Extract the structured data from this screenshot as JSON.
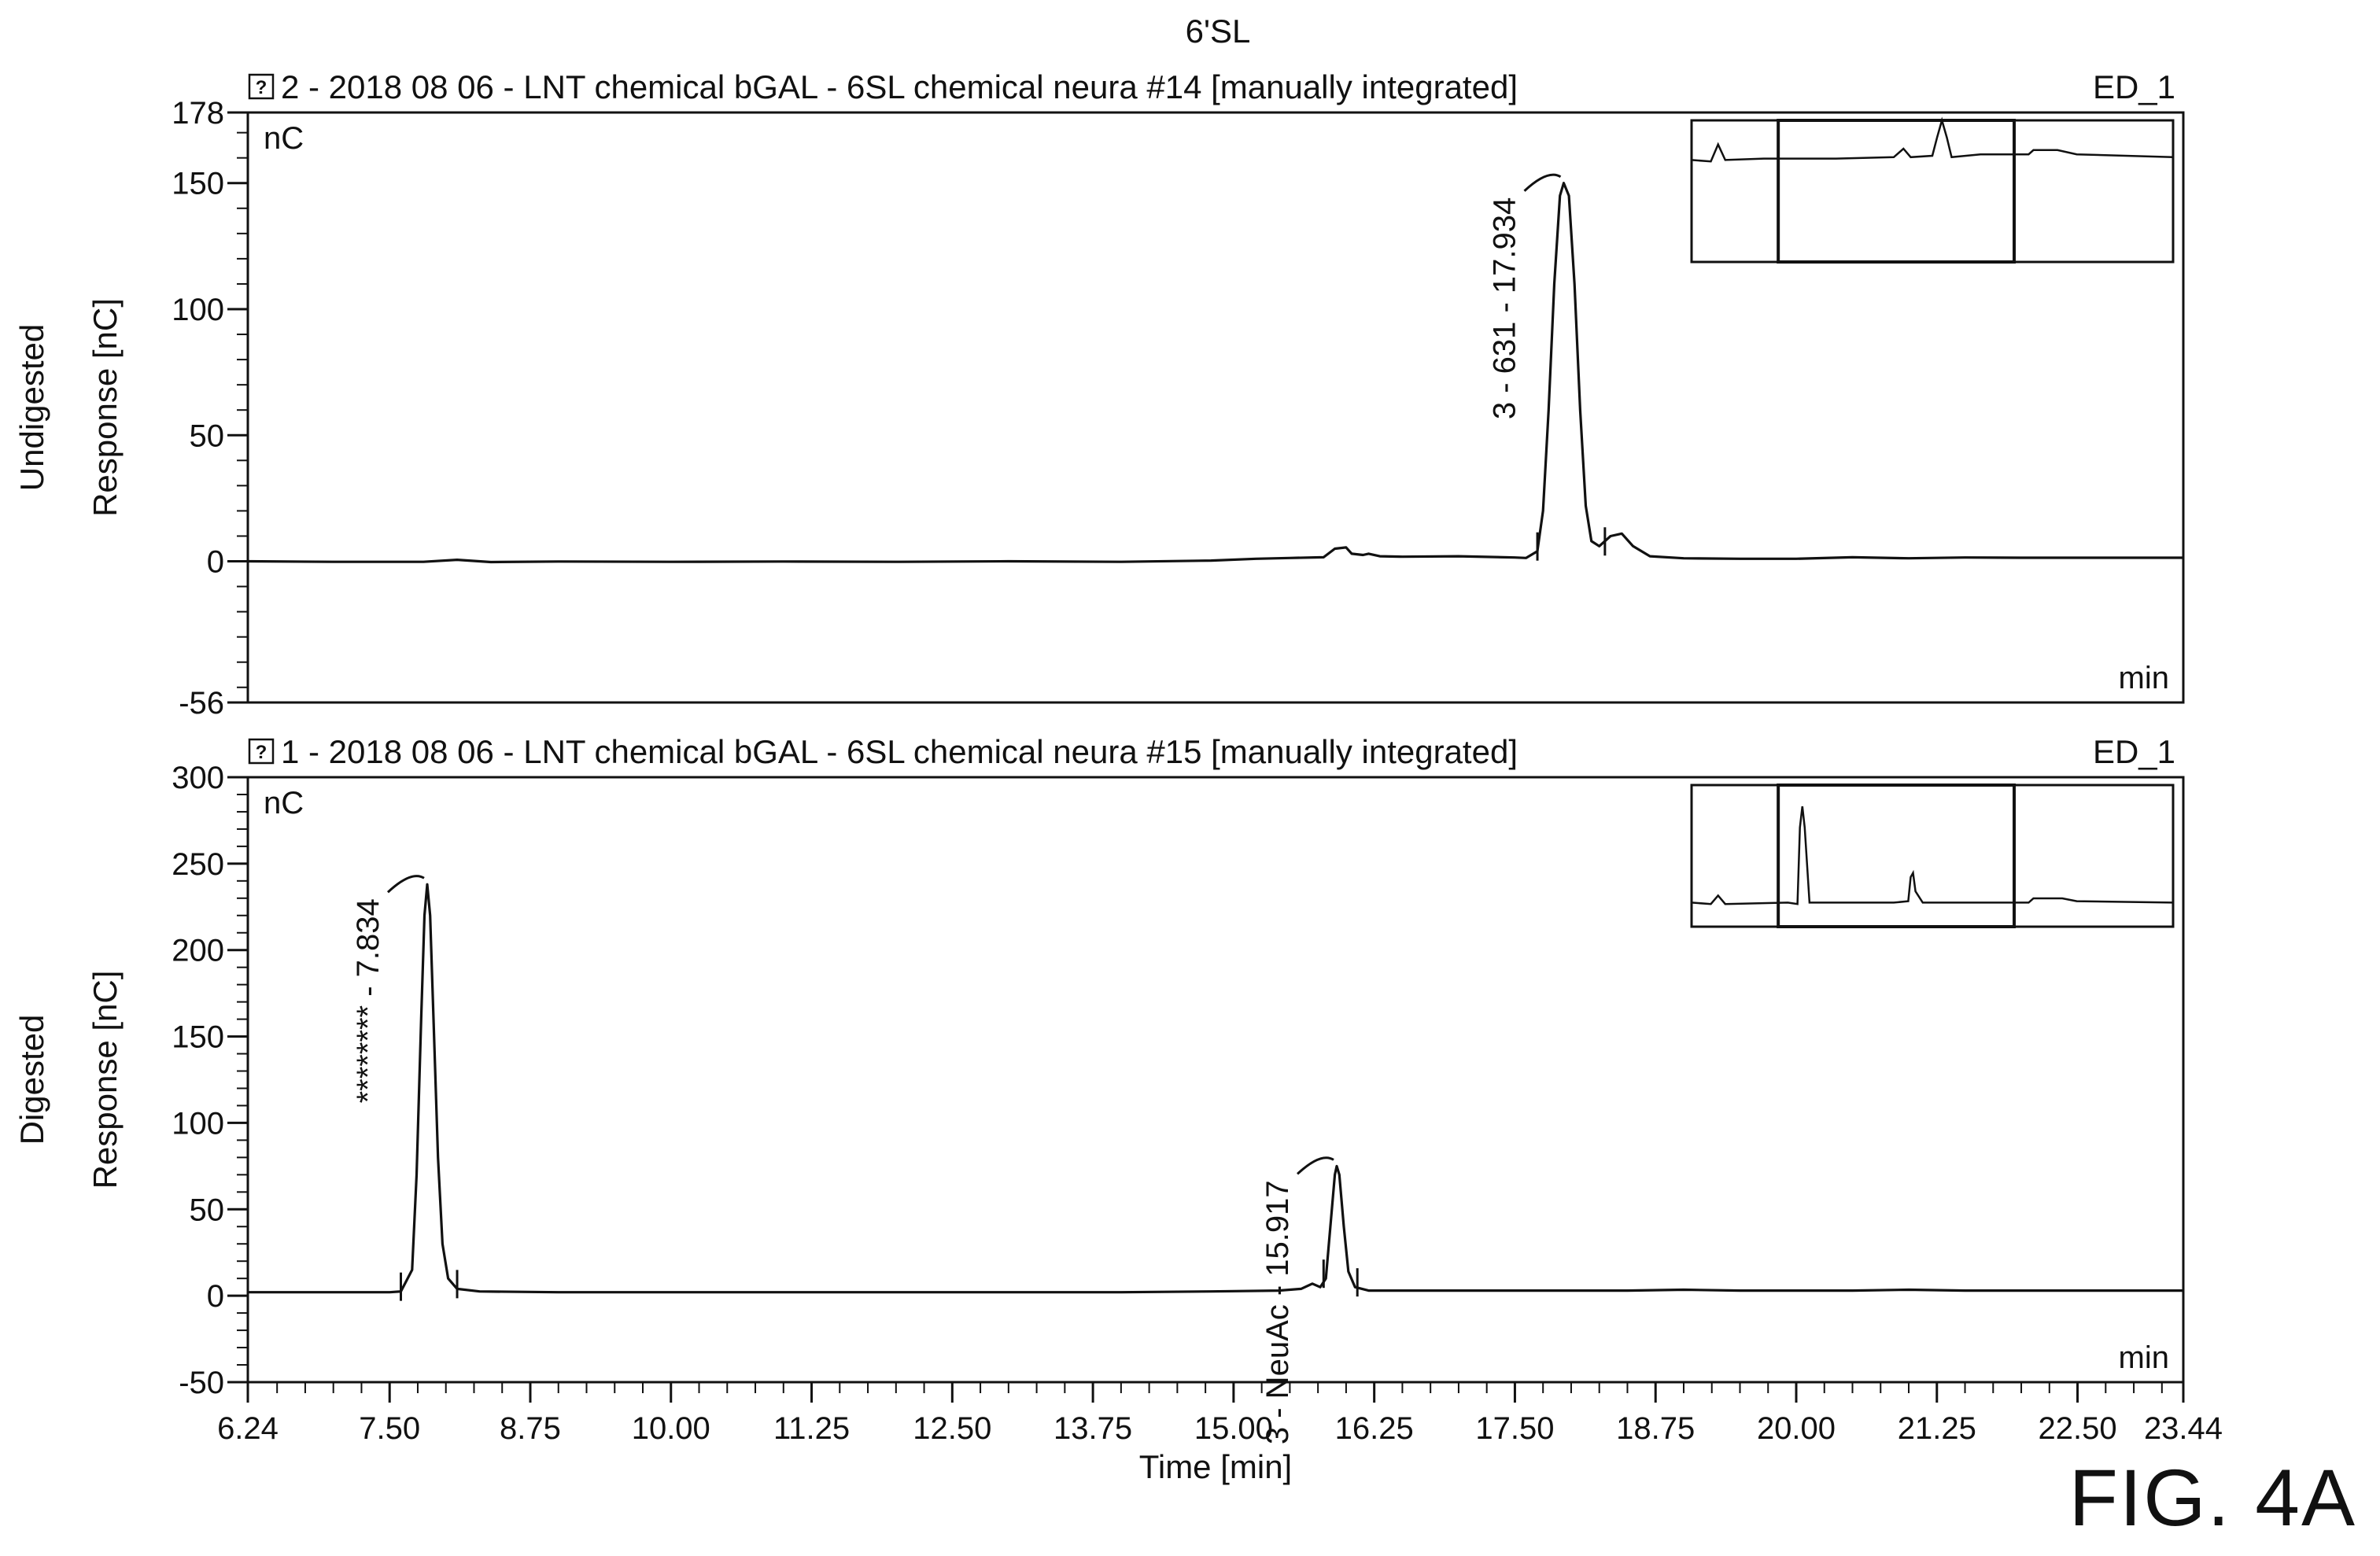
{
  "figure_title": "6'SL",
  "figure_label": "FIG. 4A",
  "chart_data": [
    {
      "type": "line",
      "panel": "top",
      "row_label": "Undigested",
      "ylabel": "Response [nC]",
      "header_icon": "help-box-icon",
      "header": "2 - 2018 08 06 - LNT  chemical  bGAL - 6SL  chemical neura #14 [manually integrated]",
      "channel": "ED_1",
      "unit_label": "nC",
      "x_unit_label": "min",
      "xlim": [
        6.24,
        23.44
      ],
      "ylim": [
        -56,
        178
      ],
      "y_ticks": [
        -56,
        0,
        50,
        100,
        150,
        178
      ],
      "x_ticks": [
        6.24,
        7.5,
        8.75,
        10.0,
        11.25,
        12.5,
        13.75,
        15.0,
        16.25,
        17.5,
        18.75,
        20.0,
        21.25,
        22.5,
        23.44
      ],
      "grid": false,
      "series": [
        {
          "points": [
            [
              6.24,
              0
            ],
            [
              7.0,
              -0.2
            ],
            [
              7.8,
              -0.2
            ],
            [
              8.1,
              0.6
            ],
            [
              8.4,
              -0.3
            ],
            [
              9.0,
              -0.1
            ],
            [
              10.0,
              -0.2
            ],
            [
              11.0,
              -0.1
            ],
            [
              12.0,
              -0.2
            ],
            [
              13.0,
              0
            ],
            [
              14.0,
              -0.2
            ],
            [
              14.8,
              0.3
            ],
            [
              15.2,
              1.0
            ],
            [
              15.5,
              1.3
            ],
            [
              15.8,
              1.6
            ],
            [
              15.9,
              5.0
            ],
            [
              16.0,
              5.5
            ],
            [
              16.05,
              3.0
            ],
            [
              16.15,
              2.5
            ],
            [
              16.2,
              3.0
            ],
            [
              16.3,
              2.0
            ],
            [
              16.5,
              1.8
            ],
            [
              17.0,
              2.0
            ],
            [
              17.5,
              1.5
            ],
            [
              17.6,
              1.3
            ],
            [
              17.7,
              4.0
            ],
            [
              17.75,
              20
            ],
            [
              17.8,
              60
            ],
            [
              17.85,
              110
            ],
            [
              17.9,
              145
            ],
            [
              17.934,
              150
            ],
            [
              17.98,
              145
            ],
            [
              18.03,
              110
            ],
            [
              18.08,
              60
            ],
            [
              18.13,
              22
            ],
            [
              18.18,
              8
            ],
            [
              18.25,
              6
            ],
            [
              18.35,
              10
            ],
            [
              18.45,
              11
            ],
            [
              18.55,
              6
            ],
            [
              18.7,
              2
            ],
            [
              19.0,
              1.2
            ],
            [
              19.5,
              1.0
            ],
            [
              20.0,
              1.0
            ],
            [
              20.5,
              1.6
            ],
            [
              21.0,
              1.2
            ],
            [
              21.5,
              1.5
            ],
            [
              22.0,
              1.4
            ],
            [
              22.5,
              1.4
            ],
            [
              23.0,
              1.4
            ],
            [
              23.44,
              1.4
            ]
          ]
        }
      ],
      "baseline_markers": [
        17.7,
        18.3
      ],
      "peaks": [
        {
          "label": "3 - 631 - 17.934",
          "x": 17.934,
          "y": 150
        }
      ],
      "inset": {
        "trace": [
          [
            0,
            0.28
          ],
          [
            0.04,
            0.29
          ],
          [
            0.055,
            0.17
          ],
          [
            0.07,
            0.28
          ],
          [
            0.15,
            0.27
          ],
          [
            0.3,
            0.27
          ],
          [
            0.42,
            0.26
          ],
          [
            0.44,
            0.2
          ],
          [
            0.455,
            0.26
          ],
          [
            0.5,
            0.25
          ],
          [
            0.51,
            0.12
          ],
          [
            0.52,
            0.0
          ],
          [
            0.53,
            0.12
          ],
          [
            0.54,
            0.26
          ],
          [
            0.6,
            0.24
          ],
          [
            0.7,
            0.24
          ],
          [
            0.71,
            0.21
          ],
          [
            0.76,
            0.21
          ],
          [
            0.8,
            0.24
          ],
          [
            1.0,
            0.26
          ]
        ],
        "window": [
          0.18,
          0.67
        ]
      }
    },
    {
      "type": "line",
      "panel": "bottom",
      "row_label": "Digested",
      "ylabel": "Response [nC]",
      "header_icon": "help-box-icon",
      "header": "1 - 2018 08 06 - LNT  chemical  bGAL - 6SL  chemical neura #15 [manually integrated]",
      "channel": "ED_1",
      "unit_label": "nC",
      "x_unit_label": "min",
      "xlabel": "Time [min]",
      "xlim": [
        6.24,
        23.44
      ],
      "ylim": [
        -50,
        300
      ],
      "y_ticks": [
        -50,
        0,
        50,
        100,
        150,
        200,
        250,
        300
      ],
      "x_ticks": [
        6.24,
        7.5,
        8.75,
        10.0,
        11.25,
        12.5,
        13.75,
        15.0,
        16.25,
        17.5,
        18.75,
        20.0,
        21.25,
        22.5,
        23.44
      ],
      "grid": false,
      "series": [
        {
          "points": [
            [
              6.24,
              2.0
            ],
            [
              7.0,
              2.0
            ],
            [
              7.5,
              2.0
            ],
            [
              7.6,
              2.5
            ],
            [
              7.7,
              15
            ],
            [
              7.74,
              70
            ],
            [
              7.78,
              160
            ],
            [
              7.81,
              220
            ],
            [
              7.834,
              238
            ],
            [
              7.86,
              220
            ],
            [
              7.89,
              160
            ],
            [
              7.93,
              80
            ],
            [
              7.97,
              30
            ],
            [
              8.02,
              10
            ],
            [
              8.1,
              4
            ],
            [
              8.3,
              2.5
            ],
            [
              9.0,
              2.0
            ],
            [
              10.0,
              2.0
            ],
            [
              11.0,
              2.0
            ],
            [
              12.0,
              2.0
            ],
            [
              13.0,
              2.0
            ],
            [
              14.0,
              2.0
            ],
            [
              14.8,
              2.5
            ],
            [
              15.4,
              3.0
            ],
            [
              15.6,
              4.0
            ],
            [
              15.7,
              7.0
            ],
            [
              15.77,
              5.0
            ],
            [
              15.82,
              10.0
            ],
            [
              15.86,
              40
            ],
            [
              15.9,
              70
            ],
            [
              15.917,
              75
            ],
            [
              15.94,
              70
            ],
            [
              15.98,
              40
            ],
            [
              16.02,
              14
            ],
            [
              16.08,
              5.0
            ],
            [
              16.2,
              3.0
            ],
            [
              16.5,
              3.0
            ],
            [
              17.0,
              3.0
            ],
            [
              17.5,
              3.0
            ],
            [
              18.0,
              3.0
            ],
            [
              18.5,
              3.0
            ],
            [
              19.0,
              3.5
            ],
            [
              19.5,
              3.0
            ],
            [
              20.0,
              3.0
            ],
            [
              20.5,
              3.0
            ],
            [
              21.0,
              3.5
            ],
            [
              21.5,
              3.0
            ],
            [
              22.0,
              3.0
            ],
            [
              22.5,
              3.0
            ],
            [
              23.0,
              3.0
            ],
            [
              23.44,
              3.0
            ]
          ]
        }
      ],
      "baseline_markers": [
        7.6,
        8.1,
        15.8,
        16.1
      ],
      "peaks": [
        {
          "label": "******** - 7.834",
          "x": 7.834,
          "y": 238
        },
        {
          "label": "3 - NeuAc - 15.917",
          "x": 15.917,
          "y": 75
        }
      ],
      "inset": {
        "trace": [
          [
            0,
            0.83
          ],
          [
            0.04,
            0.84
          ],
          [
            0.055,
            0.78
          ],
          [
            0.07,
            0.84
          ],
          [
            0.2,
            0.83
          ],
          [
            0.22,
            0.84
          ],
          [
            0.225,
            0.3
          ],
          [
            0.23,
            0.15
          ],
          [
            0.235,
            0.3
          ],
          [
            0.245,
            0.83
          ],
          [
            0.3,
            0.83
          ],
          [
            0.42,
            0.83
          ],
          [
            0.45,
            0.82
          ],
          [
            0.455,
            0.65
          ],
          [
            0.46,
            0.62
          ],
          [
            0.465,
            0.75
          ],
          [
            0.48,
            0.83
          ],
          [
            0.6,
            0.83
          ],
          [
            0.7,
            0.83
          ],
          [
            0.71,
            0.8
          ],
          [
            0.77,
            0.8
          ],
          [
            0.8,
            0.82
          ],
          [
            1.0,
            0.83
          ]
        ],
        "window": [
          0.18,
          0.67
        ]
      }
    }
  ]
}
